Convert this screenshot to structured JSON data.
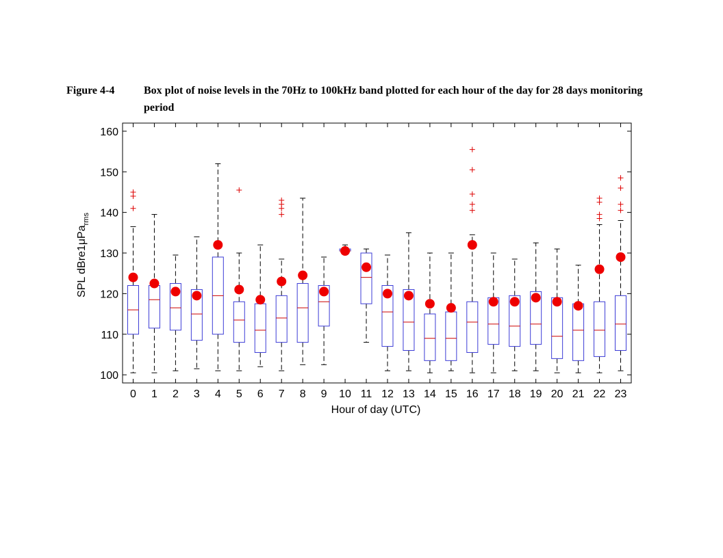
{
  "caption": {
    "label": "Figure 4-4",
    "text": "Box plot of noise levels in the 70Hz to 100kHz band plotted for each hour of the day for 28 days monitoring period"
  },
  "chart_data": {
    "type": "box",
    "title": "",
    "xlabel": "Hour of day (UTC)",
    "ylabel_main": "SPL dBre1μPa",
    "ylabel_sub": "rms",
    "ylim": [
      98,
      162
    ],
    "yticks": [
      100,
      110,
      120,
      130,
      140,
      150,
      160
    ],
    "categories": [
      "0",
      "1",
      "2",
      "3",
      "4",
      "5",
      "6",
      "7",
      "8",
      "9",
      "10",
      "11",
      "12",
      "13",
      "14",
      "15",
      "16",
      "17",
      "18",
      "19",
      "20",
      "21",
      "22",
      "23"
    ],
    "colors": {
      "box": "#3b3bd6",
      "median": "#cc0000",
      "mean": "#ee0000",
      "outlier": "#dd0000",
      "whisker": "#000000"
    },
    "boxes": [
      {
        "hour": "0",
        "whisker_low": 100.5,
        "q1": 110,
        "median": 116,
        "q3": 122,
        "whisker_high": 136.5,
        "mean": 124,
        "outliers": [
          141,
          144,
          145
        ]
      },
      {
        "hour": "1",
        "whisker_low": 100.5,
        "q1": 111.5,
        "median": 118.5,
        "q3": 122,
        "whisker_high": 139.5,
        "mean": 122.5,
        "outliers": []
      },
      {
        "hour": "2",
        "whisker_low": 101,
        "q1": 111,
        "median": 116.5,
        "q3": 122.5,
        "whisker_high": 129.5,
        "mean": 120.5,
        "outliers": []
      },
      {
        "hour": "3",
        "whisker_low": 101.5,
        "q1": 108.5,
        "median": 115,
        "q3": 121,
        "whisker_high": 134,
        "mean": 119.5,
        "outliers": []
      },
      {
        "hour": "4",
        "whisker_low": 101,
        "q1": 110,
        "median": 119.5,
        "q3": 129,
        "whisker_high": 152,
        "mean": 132,
        "outliers": []
      },
      {
        "hour": "5",
        "whisker_low": 101,
        "q1": 108,
        "median": 113.5,
        "q3": 118,
        "whisker_high": 130,
        "mean": 121,
        "outliers": [
          145.5
        ]
      },
      {
        "hour": "6",
        "whisker_low": 102,
        "q1": 105.5,
        "median": 111,
        "q3": 117.5,
        "whisker_high": 132,
        "mean": 118.5,
        "outliers": []
      },
      {
        "hour": "7",
        "whisker_low": 101,
        "q1": 108,
        "median": 114,
        "q3": 119.5,
        "whisker_high": 128.5,
        "mean": 123,
        "outliers": [
          139.5,
          141,
          142,
          143
        ]
      },
      {
        "hour": "8",
        "whisker_low": 102.5,
        "q1": 108,
        "median": 116.5,
        "q3": 122.5,
        "whisker_high": 143.5,
        "mean": 124.5,
        "outliers": []
      },
      {
        "hour": "9",
        "whisker_low": 102.5,
        "q1": 112,
        "median": 118,
        "q3": 122,
        "whisker_high": 129,
        "mean": 120.5,
        "outliers": []
      },
      {
        "hour": "10",
        "whisker_low": 130,
        "q1": 130.5,
        "median": 130.5,
        "q3": 131,
        "whisker_high": 132,
        "mean": 130.5,
        "outliers": []
      },
      {
        "hour": "11",
        "whisker_low": 108,
        "q1": 117.5,
        "median": 124,
        "q3": 130,
        "whisker_high": 131,
        "mean": 126.5,
        "outliers": []
      },
      {
        "hour": "12",
        "whisker_low": 101,
        "q1": 107,
        "median": 115.5,
        "q3": 122,
        "whisker_high": 129.5,
        "mean": 120,
        "outliers": []
      },
      {
        "hour": "13",
        "whisker_low": 101,
        "q1": 106,
        "median": 113,
        "q3": 121,
        "whisker_high": 135,
        "mean": 119.5,
        "outliers": []
      },
      {
        "hour": "14",
        "whisker_low": 100.5,
        "q1": 103.5,
        "median": 109,
        "q3": 115,
        "whisker_high": 130,
        "mean": 117.5,
        "outliers": []
      },
      {
        "hour": "15",
        "whisker_low": 101,
        "q1": 103.5,
        "median": 109,
        "q3": 115.5,
        "whisker_high": 130,
        "mean": 116.5,
        "outliers": []
      },
      {
        "hour": "16",
        "whisker_low": 100.5,
        "q1": 105.5,
        "median": 113,
        "q3": 118,
        "whisker_high": 134.5,
        "mean": 132,
        "outliers": [
          140.5,
          142,
          144.5,
          150.5,
          155.5
        ]
      },
      {
        "hour": "17",
        "whisker_low": 100.5,
        "q1": 107.5,
        "median": 112.5,
        "q3": 119,
        "whisker_high": 130,
        "mean": 118,
        "outliers": []
      },
      {
        "hour": "18",
        "whisker_low": 101,
        "q1": 107,
        "median": 112,
        "q3": 119.5,
        "whisker_high": 128.5,
        "mean": 118,
        "outliers": []
      },
      {
        "hour": "19",
        "whisker_low": 101,
        "q1": 107.5,
        "median": 112.5,
        "q3": 120.5,
        "whisker_high": 132.5,
        "mean": 119,
        "outliers": []
      },
      {
        "hour": "20",
        "whisker_low": 100.5,
        "q1": 104,
        "median": 109.5,
        "q3": 119,
        "whisker_high": 131,
        "mean": 118,
        "outliers": []
      },
      {
        "hour": "21",
        "whisker_low": 100.5,
        "q1": 103.5,
        "median": 111,
        "q3": 117.5,
        "whisker_high": 127,
        "mean": 117,
        "outliers": []
      },
      {
        "hour": "22",
        "whisker_low": 100.5,
        "q1": 104.5,
        "median": 111,
        "q3": 118,
        "whisker_high": 137,
        "mean": 126,
        "outliers": [
          138.5,
          139.5,
          142.5,
          143.5
        ]
      },
      {
        "hour": "23",
        "whisker_low": 101,
        "q1": 106,
        "median": 112.5,
        "q3": 119.5,
        "whisker_high": 138,
        "mean": 129,
        "outliers": [
          140.5,
          142,
          146,
          148.5
        ]
      }
    ]
  }
}
